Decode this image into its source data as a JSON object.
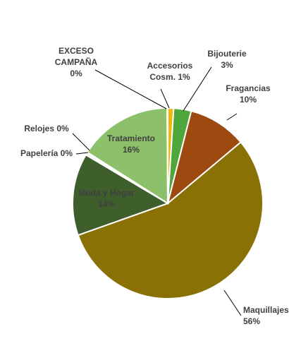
{
  "chart_data": {
    "type": "pie",
    "title": "",
    "slices": [
      {
        "name": "Accesorios Cosm.",
        "value": 1,
        "label_lines": [
          "Accesorios",
          "Cosm. 1%"
        ],
        "color": "#f2b705"
      },
      {
        "name": "Bijouterie",
        "value": 3,
        "label_lines": [
          "Bijouterie",
          "3%"
        ],
        "color": "#4fa63a"
      },
      {
        "name": "Fragancias",
        "value": 10,
        "label_lines": [
          "Fragancias",
          "10%"
        ],
        "color": "#9c4a10"
      },
      {
        "name": "Maquillajes",
        "value": 56,
        "label_lines": [
          "Maquillajes",
          "56%"
        ],
        "color": "#8a7106"
      },
      {
        "name": "Moda y Hogar",
        "value": 14,
        "label_lines": [
          "Moda y Hogar",
          "14%"
        ],
        "color": "#3e5e2c"
      },
      {
        "name": "Papelería",
        "value": 0.3,
        "label_lines": [
          "Papelería 0%"
        ],
        "color": "#c9c9a0"
      },
      {
        "name": "Relojes",
        "value": 0.2,
        "label_lines": [
          "Relojes 0%"
        ],
        "color": "#d8d8d8"
      },
      {
        "name": "Tratamiento",
        "value": 16,
        "label_lines": [
          "Tratamiento",
          "16%"
        ],
        "color": "#8cc06a"
      },
      {
        "name": "EXCESO CAMPAÑA",
        "value": 0.1,
        "label_lines": [
          "EXCESO",
          "CAMPAÑA",
          "0%"
        ],
        "color": "#6f9f3e"
      }
    ],
    "start": "12 o'clock",
    "direction": "clockwise",
    "legend": "none"
  }
}
